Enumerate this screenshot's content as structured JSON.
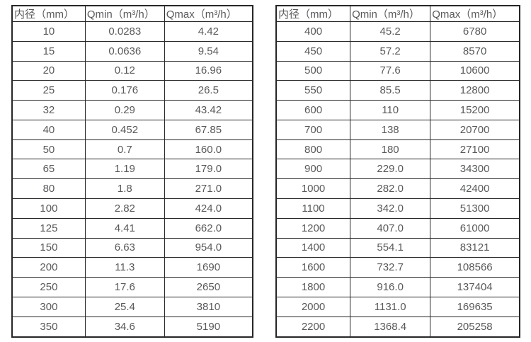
{
  "page": {
    "background": "#ffffff"
  },
  "colors": {
    "border": "#262626",
    "text": "#58595b",
    "cell_background": "#ffffff"
  },
  "tables": [
    {
      "name": "flow-table-small-diameters",
      "headers": [
        "内径（mm）",
        "Qmin（m³/h）",
        "Qmax（m³/h）"
      ],
      "rows": [
        [
          "10",
          "0.0283",
          "4.42"
        ],
        [
          "15",
          "0.0636",
          "9.54"
        ],
        [
          "20",
          "0.12",
          "16.96"
        ],
        [
          "25",
          "0.176",
          "26.5"
        ],
        [
          "32",
          "0.29",
          "43.42"
        ],
        [
          "40",
          "0.452",
          "67.85"
        ],
        [
          "50",
          "0.7",
          "160.0"
        ],
        [
          "65",
          "1.19",
          "179.0"
        ],
        [
          "80",
          "1.8",
          "271.0"
        ],
        [
          "100",
          "2.82",
          "424.0"
        ],
        [
          "125",
          "4.41",
          "662.0"
        ],
        [
          "150",
          "6.63",
          "954.0"
        ],
        [
          "200",
          "11.3",
          "1690"
        ],
        [
          "250",
          "17.6",
          "2650"
        ],
        [
          "300",
          "25.4",
          "3810"
        ],
        [
          "350",
          "34.6",
          "5190"
        ]
      ]
    },
    {
      "name": "flow-table-large-diameters",
      "headers": [
        "内径（mm）",
        "Qmin（m³/h）",
        "Qmax（m³/h）"
      ],
      "rows": [
        [
          "400",
          "45.2",
          "6780"
        ],
        [
          "450",
          "57.2",
          "8570"
        ],
        [
          "500",
          "77.6",
          "10600"
        ],
        [
          "550",
          "85.5",
          "12800"
        ],
        [
          "600",
          "110",
          "15200"
        ],
        [
          "700",
          "138",
          "20700"
        ],
        [
          "800",
          "180",
          "27100"
        ],
        [
          "900",
          "229.0",
          "34300"
        ],
        [
          "1000",
          "282.0",
          "42400"
        ],
        [
          "1100",
          "342.0",
          "51300"
        ],
        [
          "1200",
          "407.0",
          "61000"
        ],
        [
          "1400",
          "554.1",
          "83121"
        ],
        [
          "1600",
          "732.7",
          "108566"
        ],
        [
          "1800",
          "916.0",
          "137404"
        ],
        [
          "2000",
          "1131.0",
          "169635"
        ],
        [
          "2200",
          "1368.4",
          "205258"
        ]
      ]
    }
  ],
  "header_names": [
    "col-header-diameter",
    "col-header-qmin",
    "col-header-qmax"
  ]
}
